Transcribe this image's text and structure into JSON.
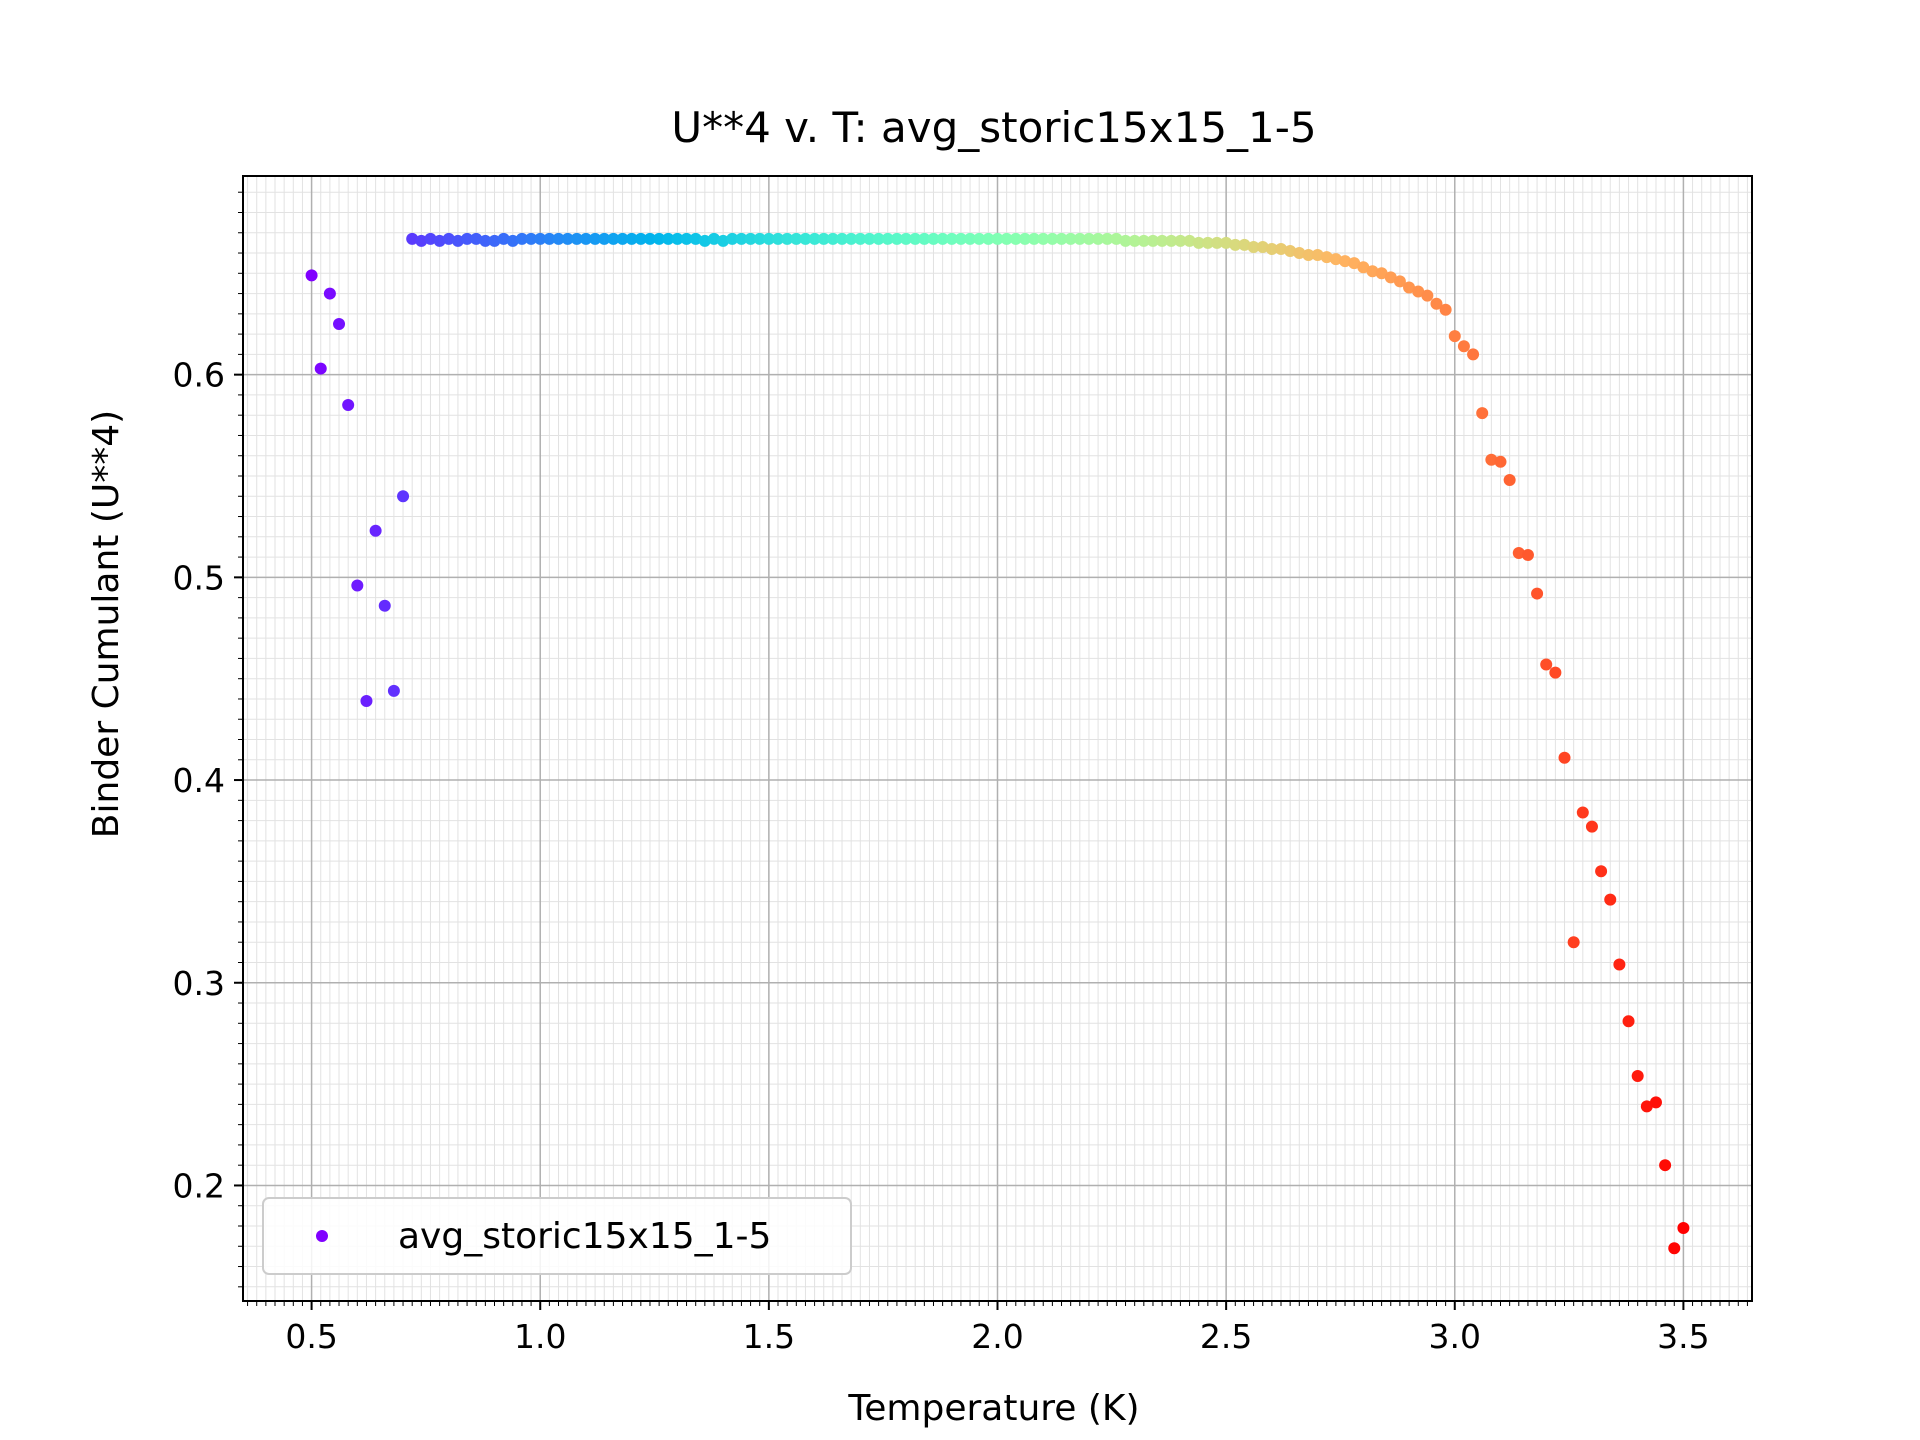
{
  "chart_data": {
    "type": "scatter",
    "title": "U**4 v. T: avg_storic15x15_1-5",
    "xlabel": "Temperature (K)",
    "ylabel": "Binder Cumulant (U**4)",
    "xlim": [
      0.35,
      3.65
    ],
    "ylim": [
      0.143,
      0.698
    ],
    "xticks": [
      0.5,
      1.0,
      1.5,
      2.0,
      2.5,
      3.0,
      3.5
    ],
    "xtick_labels": [
      "0.5",
      "1.0",
      "1.5",
      "2.0",
      "2.5",
      "3.0",
      "3.5"
    ],
    "yticks": [
      0.2,
      0.3,
      0.4,
      0.5,
      0.6
    ],
    "ytick_labels": [
      "0.2",
      "0.3",
      "0.4",
      "0.5",
      "0.6"
    ],
    "grid": true,
    "minor_grid": true,
    "colormap": "rainbow",
    "legend_position": "lower-left",
    "series": [
      {
        "name": "avg_storic15x15_1-5",
        "legend_color": "#8000ff",
        "x": [
          0.5,
          0.52,
          0.54,
          0.56,
          0.58,
          0.6,
          0.62,
          0.64,
          0.66,
          0.68,
          0.7,
          0.72,
          0.74,
          0.76,
          0.78,
          0.8,
          0.82,
          0.84,
          0.86,
          0.88,
          0.9,
          0.92,
          0.94,
          0.96,
          0.98,
          1.0,
          1.02,
          1.04,
          1.06,
          1.08,
          1.1,
          1.12,
          1.14,
          1.16,
          1.18,
          1.2,
          1.22,
          1.24,
          1.26,
          1.28,
          1.3,
          1.32,
          1.34,
          1.36,
          1.38,
          1.4,
          1.42,
          1.44,
          1.46,
          1.48,
          1.5,
          1.52,
          1.54,
          1.56,
          1.58,
          1.6,
          1.62,
          1.64,
          1.66,
          1.68,
          1.7,
          1.72,
          1.74,
          1.76,
          1.78,
          1.8,
          1.82,
          1.84,
          1.86,
          1.88,
          1.9,
          1.92,
          1.94,
          1.96,
          1.98,
          2.0,
          2.02,
          2.04,
          2.06,
          2.08,
          2.1,
          2.12,
          2.14,
          2.16,
          2.18,
          2.2,
          2.22,
          2.24,
          2.26,
          2.28,
          2.3,
          2.32,
          2.34,
          2.36,
          2.38,
          2.4,
          2.42,
          2.44,
          2.46,
          2.48,
          2.5,
          2.52,
          2.54,
          2.56,
          2.58,
          2.6,
          2.62,
          2.64,
          2.66,
          2.68,
          2.7,
          2.72,
          2.74,
          2.76,
          2.78,
          2.8,
          2.82,
          2.84,
          2.86,
          2.88,
          2.9,
          2.92,
          2.94,
          2.96,
          2.98,
          3.0,
          3.02,
          3.04,
          3.06,
          3.08,
          3.1,
          3.12,
          3.14,
          3.16,
          3.18,
          3.2,
          3.22,
          3.24,
          3.26,
          3.28,
          3.3,
          3.32,
          3.34,
          3.36,
          3.38,
          3.4,
          3.42,
          3.44,
          3.46,
          3.48,
          3.5
        ],
        "y": [
          0.649,
          0.603,
          0.64,
          0.625,
          0.585,
          0.496,
          0.439,
          0.523,
          0.486,
          0.444,
          0.54,
          0.667,
          0.666,
          0.667,
          0.666,
          0.667,
          0.666,
          0.667,
          0.667,
          0.666,
          0.666,
          0.667,
          0.666,
          0.667,
          0.667,
          0.667,
          0.667,
          0.667,
          0.667,
          0.667,
          0.667,
          0.667,
          0.667,
          0.667,
          0.667,
          0.667,
          0.667,
          0.667,
          0.667,
          0.667,
          0.667,
          0.667,
          0.667,
          0.666,
          0.667,
          0.666,
          0.667,
          0.667,
          0.667,
          0.667,
          0.667,
          0.667,
          0.667,
          0.667,
          0.667,
          0.667,
          0.667,
          0.667,
          0.667,
          0.667,
          0.667,
          0.667,
          0.667,
          0.667,
          0.667,
          0.667,
          0.667,
          0.667,
          0.667,
          0.667,
          0.667,
          0.667,
          0.667,
          0.667,
          0.667,
          0.667,
          0.667,
          0.667,
          0.667,
          0.667,
          0.667,
          0.667,
          0.667,
          0.667,
          0.667,
          0.667,
          0.667,
          0.667,
          0.667,
          0.666,
          0.666,
          0.666,
          0.666,
          0.666,
          0.666,
          0.666,
          0.666,
          0.665,
          0.665,
          0.665,
          0.665,
          0.664,
          0.664,
          0.663,
          0.663,
          0.662,
          0.662,
          0.661,
          0.66,
          0.659,
          0.659,
          0.658,
          0.657,
          0.656,
          0.655,
          0.653,
          0.651,
          0.65,
          0.648,
          0.646,
          0.643,
          0.641,
          0.639,
          0.635,
          0.632,
          0.619,
          0.614,
          0.61,
          0.581,
          0.558,
          0.557,
          0.548,
          0.512,
          0.511,
          0.492,
          0.457,
          0.453,
          0.411,
          0.32,
          0.384,
          0.377,
          0.355,
          0.341,
          0.309,
          0.281,
          0.254,
          0.239,
          0.241,
          0.21,
          0.169,
          0.179
        ]
      }
    ]
  }
}
